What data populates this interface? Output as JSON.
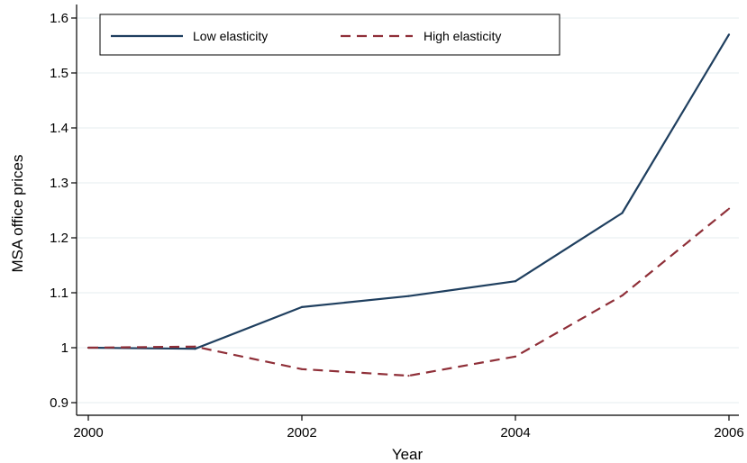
{
  "chart_data": {
    "type": "line",
    "title": "",
    "xlabel": "Year",
    "ylabel": "MSA office prices",
    "x": [
      2000,
      2001,
      2002,
      2003,
      2004,
      2005,
      2006
    ],
    "xlim": [
      2000,
      2006
    ],
    "ylim": [
      0.88,
      1.615
    ],
    "xticks": [
      2000,
      2002,
      2004,
      2006
    ],
    "yticks": [
      0.9,
      1,
      1.1,
      1.2,
      1.3,
      1.4,
      1.5,
      1.6
    ],
    "ytick_labels": [
      "0.9",
      "1",
      "1.1",
      "1.2",
      "1.3",
      "1.4",
      "1.5",
      "1.6"
    ],
    "grid": "horizontal",
    "legend_position": "top",
    "series": [
      {
        "name": "Low elasticity",
        "color": "#1f3f5f",
        "style": "solid",
        "values": [
          1.0,
          0.998,
          1.074,
          1.094,
          1.121,
          1.245,
          1.57
        ]
      },
      {
        "name": "High elasticity",
        "color": "#8f2f38",
        "style": "dashed",
        "values": [
          1.0,
          1.002,
          0.961,
          0.949,
          0.984,
          1.095,
          1.253
        ]
      }
    ]
  }
}
